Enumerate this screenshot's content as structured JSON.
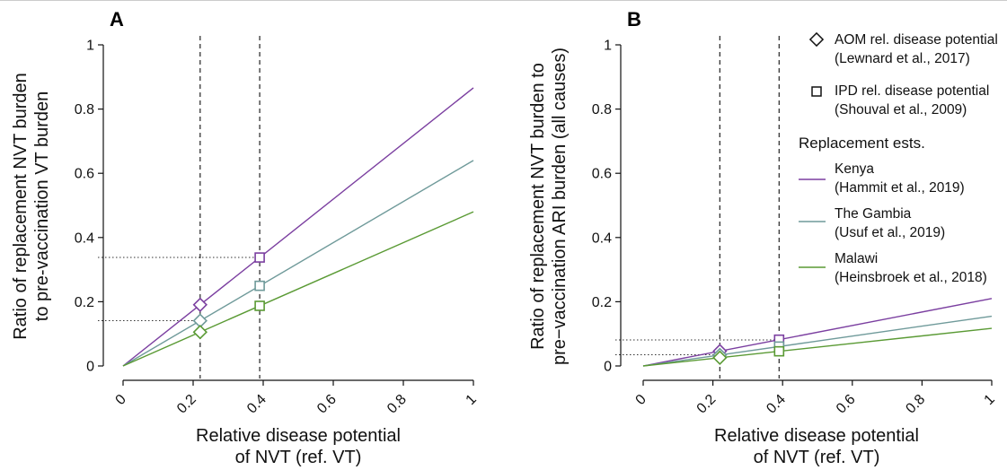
{
  "chart_data": [
    {
      "type": "line",
      "panel": "A",
      "xlabel": [
        "Relative disease potential",
        "of NVT (ref. VT)"
      ],
      "ylabel": [
        "Ratio of replacement NVT burden",
        "to pre-vaccination VT burden"
      ],
      "xlim": [
        0,
        1
      ],
      "ylim": [
        0,
        1
      ],
      "xticks": [
        "0",
        "0.2",
        "0.4",
        "0.6",
        "0.8",
        "1"
      ],
      "yticks": [
        "0",
        "0.2",
        "0.4",
        "0.6",
        "0.8",
        "1"
      ],
      "vlines_x": [
        0.22,
        0.39
      ],
      "hlines": [
        {
          "y": 0.338,
          "to_x": 0.39
        },
        {
          "y": 0.141,
          "to_x": 0.22
        }
      ],
      "series": [
        {
          "name": "Kenya",
          "color": "#7b3fa0",
          "slope": 0.866
        },
        {
          "name": "The Gambia",
          "color": "#6f9a9a",
          "slope": 0.64
        },
        {
          "name": "Malawi",
          "color": "#5a9a34",
          "slope": 0.48
        }
      ]
    },
    {
      "type": "line",
      "panel": "B",
      "xlabel": [
        "Relative disease potential",
        "of NVT (ref. VT)"
      ],
      "ylabel": [
        "Ratio of replacement NVT burden to",
        "pre−vaccination ARI burden (all causes)"
      ],
      "xlim": [
        0,
        1
      ],
      "ylim": [
        0,
        1
      ],
      "xticks": [
        "0",
        "0.2",
        "0.4",
        "0.6",
        "0.8",
        "1"
      ],
      "yticks": [
        "0",
        "0.2",
        "0.4",
        "0.6",
        "0.8",
        "1"
      ],
      "vlines_x": [
        0.22,
        0.39
      ],
      "hlines": [
        {
          "y": 0.081,
          "to_x": 0.39
        },
        {
          "y": 0.035,
          "to_x": 0.22
        }
      ],
      "series": [
        {
          "name": "Kenya",
          "color": "#7b3fa0",
          "slope": 0.21
        },
        {
          "name": "The Gambia",
          "color": "#6f9a9a",
          "slope": 0.155
        },
        {
          "name": "Malawi",
          "color": "#5a9a34",
          "slope": 0.117
        }
      ]
    }
  ],
  "markers": {
    "aom_x": 0.22,
    "ipd_x": 0.39
  },
  "legend": {
    "aom": [
      "AOM rel. disease potential",
      "(Lewnard et al., 2017)"
    ],
    "ipd": [
      "IPD rel. disease potential",
      "(Shouval et al., 2009)"
    ],
    "title": "Replacement ests.",
    "kenya": [
      "Kenya",
      "(Hammit et al., 2019)"
    ],
    "gambia": [
      "The Gambia",
      "(Usuf et al., 2019)"
    ],
    "malawi": [
      "Malawi",
      "(Heinsbroek et al., 2018)"
    ]
  },
  "colors": {
    "kenya": "#7b3fa0",
    "gambia": "#6f9a9a",
    "malawi": "#5a9a34"
  }
}
